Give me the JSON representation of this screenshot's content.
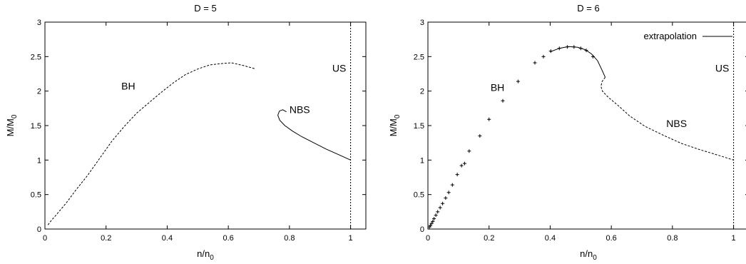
{
  "chart_data": [
    {
      "type": "line",
      "title": "D = 5",
      "xlabel": "n/n",
      "xlabel_sub": "0",
      "ylabel": "M/M",
      "ylabel_sub": "0",
      "xlim": [
        0,
        1.05
      ],
      "ylim": [
        0,
        3
      ],
      "xticks": [
        0,
        0.2,
        0.4,
        0.6,
        0.8,
        1
      ],
      "yticks": [
        0,
        0.5,
        1,
        1.5,
        2,
        2.5,
        3
      ],
      "series": [
        {
          "id": "bh",
          "style": "dashed",
          "points": [
            [
              0.01,
              0.06
            ],
            [
              0.02,
              0.12
            ],
            [
              0.04,
              0.22
            ],
            [
              0.07,
              0.38
            ],
            [
              0.1,
              0.56
            ],
            [
              0.14,
              0.78
            ],
            [
              0.18,
              1.03
            ],
            [
              0.22,
              1.28
            ],
            [
              0.26,
              1.49
            ],
            [
              0.3,
              1.68
            ],
            [
              0.34,
              1.83
            ],
            [
              0.38,
              1.98
            ],
            [
              0.42,
              2.12
            ],
            [
              0.46,
              2.24
            ],
            [
              0.5,
              2.32
            ],
            [
              0.54,
              2.38
            ],
            [
              0.58,
              2.4
            ],
            [
              0.61,
              2.41
            ],
            [
              0.65,
              2.37
            ],
            [
              0.69,
              2.32
            ]
          ]
        },
        {
          "id": "nbs",
          "style": "solid",
          "points": [
            [
              1.0,
              1.0
            ],
            [
              0.96,
              1.08
            ],
            [
              0.92,
              1.16
            ],
            [
              0.88,
              1.25
            ],
            [
              0.84,
              1.34
            ],
            [
              0.81,
              1.42
            ],
            [
              0.785,
              1.5
            ],
            [
              0.768,
              1.58
            ],
            [
              0.762,
              1.65
            ],
            [
              0.767,
              1.71
            ],
            [
              0.778,
              1.73
            ],
            [
              0.79,
              1.7
            ]
          ]
        },
        {
          "id": "us",
          "style": "dotted-vertical",
          "points": [
            [
              1.0,
              0
            ],
            [
              1.0,
              3
            ]
          ]
        }
      ],
      "annotations": [
        {
          "text": "BH",
          "x": 0.25,
          "y": 2.02
        },
        {
          "text": "NBS",
          "x": 0.8,
          "y": 1.68
        },
        {
          "text": "US",
          "x": 0.94,
          "y": 2.28
        }
      ]
    },
    {
      "type": "line",
      "title": "D = 6",
      "xlabel": "n/n",
      "xlabel_sub": "0",
      "ylabel": "M/M",
      "ylabel_sub": "0",
      "xlim": [
        0,
        1.05
      ],
      "ylim": [
        0,
        3
      ],
      "xticks": [
        0,
        0.2,
        0.4,
        0.6,
        0.8,
        1
      ],
      "yticks": [
        0,
        0.5,
        1,
        1.5,
        2,
        2.5,
        3
      ],
      "legend": {
        "label": "extrapolation",
        "position": "top-right"
      },
      "series": [
        {
          "id": "bh-points",
          "style": "plus-markers",
          "points": [
            [
              0.005,
              0.03
            ],
            [
              0.008,
              0.05
            ],
            [
              0.012,
              0.08
            ],
            [
              0.016,
              0.11
            ],
            [
              0.02,
              0.15
            ],
            [
              0.026,
              0.2
            ],
            [
              0.032,
              0.25
            ],
            [
              0.04,
              0.31
            ],
            [
              0.048,
              0.37
            ],
            [
              0.058,
              0.45
            ],
            [
              0.068,
              0.53
            ],
            [
              0.08,
              0.64
            ],
            [
              0.096,
              0.79
            ],
            [
              0.11,
              0.92
            ],
            [
              0.12,
              0.95
            ],
            [
              0.135,
              1.13
            ],
            [
              0.17,
              1.35
            ],
            [
              0.2,
              1.59
            ],
            [
              0.245,
              1.86
            ],
            [
              0.295,
              2.14
            ],
            [
              0.35,
              2.41
            ],
            [
              0.378,
              2.5
            ],
            [
              0.402,
              2.58
            ],
            [
              0.43,
              2.62
            ],
            [
              0.456,
              2.64
            ],
            [
              0.478,
              2.64
            ],
            [
              0.5,
              2.62
            ],
            [
              0.518,
              2.59
            ],
            [
              0.54,
              2.5
            ]
          ]
        },
        {
          "id": "extrapolation",
          "style": "solid",
          "points": [
            [
              0.4,
              2.57
            ],
            [
              0.43,
              2.62
            ],
            [
              0.46,
              2.645
            ],
            [
              0.49,
              2.635
            ],
            [
              0.515,
              2.6
            ],
            [
              0.535,
              2.54
            ],
            [
              0.555,
              2.44
            ],
            [
              0.57,
              2.3
            ],
            [
              0.58,
              2.2
            ]
          ]
        },
        {
          "id": "nbs",
          "style": "dashed",
          "points": [
            [
              0.58,
              2.2
            ],
            [
              0.57,
              2.14
            ],
            [
              0.566,
              2.07
            ],
            [
              0.571,
              2.0
            ],
            [
              0.59,
              1.91
            ],
            [
              0.62,
              1.8
            ],
            [
              0.66,
              1.64
            ],
            [
              0.71,
              1.49
            ],
            [
              0.77,
              1.36
            ],
            [
              0.83,
              1.24
            ],
            [
              0.89,
              1.15
            ],
            [
              0.95,
              1.07
            ],
            [
              1.0,
              1.0
            ]
          ]
        },
        {
          "id": "us",
          "style": "dotted-vertical",
          "points": [
            [
              1.0,
              0
            ],
            [
              1.0,
              3
            ]
          ]
        }
      ],
      "annotations": [
        {
          "text": "BH",
          "x": 0.205,
          "y": 2.0
        },
        {
          "text": "NBS",
          "x": 0.78,
          "y": 1.48
        },
        {
          "text": "US",
          "x": 0.94,
          "y": 2.28
        }
      ]
    }
  ]
}
